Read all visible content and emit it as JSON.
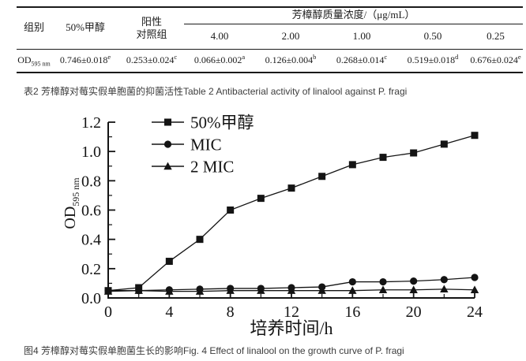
{
  "table": {
    "header": {
      "col_group": "组别",
      "col_methanol": "50%甲醇",
      "col_positive_line1": "阳性",
      "col_positive_line2": "对照组",
      "col_linalool": "芳樟醇质量浓度/（μg/mL）",
      "concentrations": [
        "4.00",
        "2.00",
        "1.00",
        "0.50",
        "0.25"
      ]
    },
    "row": {
      "label_base": "OD",
      "label_sub": "595 nm",
      "values": [
        {
          "value": "0.746±0.018",
          "sup": "e"
        },
        {
          "value": "0.253±0.024",
          "sup": "c"
        },
        {
          "value": "0.066±0.002",
          "sup": "a"
        },
        {
          "value": "0.126±0.004",
          "sup": "b"
        },
        {
          "value": "0.268±0.014",
          "sup": "c"
        },
        {
          "value": "0.519±0.018",
          "sup": "d"
        },
        {
          "value": "0.676±0.024",
          "sup": "e"
        }
      ]
    },
    "caption": "表2 芳樟醇对莓实假单胞菌的抑菌活性Table 2 Antibacterial activity of linalool against P. fragi"
  },
  "chart_data": {
    "type": "line",
    "title": "",
    "xlabel": "培养时间/h",
    "ylabel": "OD",
    "ylabel_sub": "595 nm",
    "xlim": [
      0,
      24
    ],
    "ylim": [
      0,
      1.2
    ],
    "xticks": [
      "0",
      "4",
      "8",
      "12",
      "16",
      "20",
      "24"
    ],
    "yticks": [
      "0.0",
      "0.2",
      "0.4",
      "0.6",
      "0.8",
      "1.0",
      "1.2"
    ],
    "xtick_minor_step": 2,
    "ytick_minor_step": 0.1,
    "grid": false,
    "legend_position": "upper-left",
    "color": "#141414",
    "x": [
      0,
      2,
      4,
      6,
      8,
      10,
      12,
      14,
      16,
      18,
      20,
      22,
      24
    ],
    "series": [
      {
        "name": "50%甲醇",
        "marker": "square",
        "values": [
          0.05,
          0.07,
          0.25,
          0.4,
          0.6,
          0.68,
          0.75,
          0.83,
          0.91,
          0.96,
          0.99,
          1.05,
          1.11
        ]
      },
      {
        "name": "MIC",
        "marker": "circle",
        "values": [
          0.05,
          0.05,
          0.055,
          0.06,
          0.065,
          0.065,
          0.07,
          0.075,
          0.11,
          0.11,
          0.115,
          0.125,
          0.14
        ]
      },
      {
        "name": "2 MIC",
        "marker": "triangle",
        "values": [
          0.045,
          0.05,
          0.045,
          0.045,
          0.05,
          0.05,
          0.05,
          0.05,
          0.05,
          0.055,
          0.055,
          0.06,
          0.055
        ]
      }
    ]
  },
  "figure_caption": "图4 芳樟醇对莓实假单胞菌生长的影响Fig. 4 Effect of linalool on the growth curve of P. fragi"
}
